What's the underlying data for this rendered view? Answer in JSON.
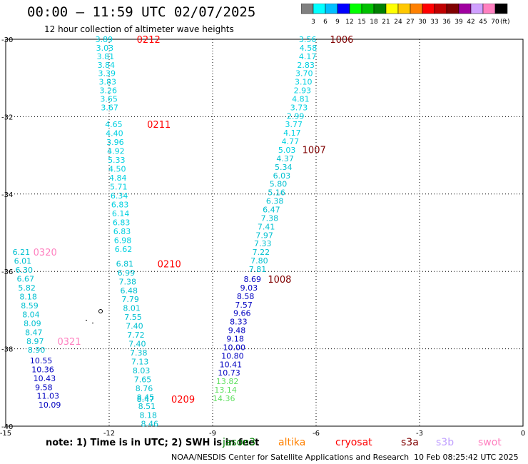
{
  "header": {
    "title": "00:00 — 11:59 UTC 02/07/2025",
    "subtitle": "12 hour collection of altimeter wave heights"
  },
  "scale": {
    "labels": [
      "3",
      "6",
      "9",
      "12",
      "15",
      "18",
      "21",
      "24",
      "27",
      "30",
      "33",
      "36",
      "39",
      "42",
      "45",
      "70"
    ],
    "unit": "(ft)",
    "colors": [
      "#808080",
      "#00ffff",
      "#00bfff",
      "#0000ff",
      "#00ff00",
      "#00c000",
      "#008000",
      "#ffff00",
      "#ffc800",
      "#ff8000",
      "#ff0000",
      "#c00000",
      "#800000",
      "#a000a0",
      "#d0a0ff",
      "#ff80c0",
      "#000000"
    ]
  },
  "map": {
    "x_ticks": [
      "-15",
      "-12",
      "-9",
      "-6",
      "-3",
      "0"
    ],
    "y_ticks": [
      "-30",
      "-32",
      "-34",
      "-36",
      "-38",
      "-40"
    ],
    "x_values": [
      -15,
      -12,
      -9,
      -6,
      -3,
      0
    ],
    "y_values": [
      -30,
      -32,
      -34,
      -36,
      -38,
      -40
    ]
  },
  "passes": [
    {
      "label": "0212",
      "label_color": "#ff0000",
      "label_lon": -11.2,
      "label_lat": -30.0,
      "color": "#00d0e0",
      "points": [
        {
          "v": "3.89",
          "lon": -12.4,
          "lat": -30.0
        },
        {
          "v": "3.03",
          "lon": -12.38,
          "lat": -30.22
        },
        {
          "v": "3.81",
          "lon": -12.36,
          "lat": -30.44
        },
        {
          "v": "3.84",
          "lon": -12.34,
          "lat": -30.66
        },
        {
          "v": "3.39",
          "lon": -12.32,
          "lat": -30.88
        },
        {
          "v": "3.83",
          "lon": -12.3,
          "lat": -31.1
        },
        {
          "v": "3.26",
          "lon": -12.28,
          "lat": -31.32
        },
        {
          "v": "3.65",
          "lon": -12.26,
          "lat": -31.54
        },
        {
          "v": "3.67",
          "lon": -12.24,
          "lat": -31.76
        }
      ]
    },
    {
      "label": "0211",
      "label_color": "#ff0000",
      "label_lon": -10.9,
      "label_lat": -32.2,
      "color": "#00d0e0",
      "points": [
        {
          "v": "4.65",
          "lon": -12.12,
          "lat": -32.2
        },
        {
          "v": "4.40",
          "lon": -12.1,
          "lat": -32.43
        },
        {
          "v": "3.96",
          "lon": -12.08,
          "lat": -32.66
        },
        {
          "v": "4.92",
          "lon": -12.06,
          "lat": -32.89
        },
        {
          "v": "5.33",
          "lon": -12.04,
          "lat": -33.12
        },
        {
          "v": "4.50",
          "lon": -12.02,
          "lat": -33.35
        },
        {
          "v": "4.84",
          "lon": -12.0,
          "lat": -33.58
        },
        {
          "v": "5.71",
          "lon": -11.98,
          "lat": -33.81
        },
        {
          "v": "6.34",
          "lon": -11.96,
          "lat": -34.04
        },
        {
          "v": "6.83",
          "lon": -11.94,
          "lat": -34.27
        },
        {
          "v": "6.14",
          "lon": -11.92,
          "lat": -34.5
        },
        {
          "v": "6.83",
          "lon": -11.9,
          "lat": -34.73
        },
        {
          "v": "6.83",
          "lon": -11.88,
          "lat": -34.96
        },
        {
          "v": "6.98",
          "lon": -11.86,
          "lat": -35.19
        },
        {
          "v": "6.62",
          "lon": -11.84,
          "lat": -35.42
        }
      ]
    },
    {
      "label": "0210",
      "label_color": "#ff0000",
      "label_lon": -10.6,
      "label_lat": -35.8,
      "color": "#00c0d0",
      "points": [
        {
          "v": "6.81",
          "lon": -11.8,
          "lat": -35.8
        },
        {
          "v": "6.99",
          "lon": -11.76,
          "lat": -36.03
        },
        {
          "v": "7.38",
          "lon": -11.72,
          "lat": -36.26
        },
        {
          "v": "6.48",
          "lon": -11.68,
          "lat": -36.49
        },
        {
          "v": "7.79",
          "lon": -11.64,
          "lat": -36.72
        },
        {
          "v": "8.01",
          "lon": -11.6,
          "lat": -36.95
        },
        {
          "v": "7.55",
          "lon": -11.56,
          "lat": -37.18
        },
        {
          "v": "7.40",
          "lon": -11.52,
          "lat": -37.41
        },
        {
          "v": "7.72",
          "lon": -11.48,
          "lat": -37.64
        },
        {
          "v": "7.40",
          "lon": -11.44,
          "lat": -37.87
        },
        {
          "v": "7.38",
          "lon": -11.4,
          "lat": -38.1
        },
        {
          "v": "7.13",
          "lon": -11.36,
          "lat": -38.33
        },
        {
          "v": "8.03",
          "lon": -11.32,
          "lat": -38.56
        },
        {
          "v": "7.65",
          "lon": -11.28,
          "lat": -38.79
        },
        {
          "v": "8.76",
          "lon": -11.24,
          "lat": -39.02
        },
        {
          "v": "8.45",
          "lon": -11.2,
          "lat": -39.25
        },
        {
          "v": "8.51",
          "lon": -11.16,
          "lat": -39.48
        },
        {
          "v": "8.18",
          "lon": -11.12,
          "lat": -39.71
        },
        {
          "v": "8.46",
          "lon": -11.08,
          "lat": -39.94
        }
      ]
    },
    {
      "label": "0209",
      "label_color": "#ff0000",
      "label_lon": -10.2,
      "label_lat": -39.3,
      "color": "#00c0d0",
      "points": [
        {
          "v": "8.47",
          "lon": -11.2,
          "lat": -39.3
        }
      ]
    },
    {
      "label": "0320",
      "label_color": "#ff80c0",
      "label_lon": -14.2,
      "label_lat": -35.5,
      "color": "#00c0d0",
      "points": [
        {
          "v": "6.21",
          "lon": -14.8,
          "lat": -35.5
        },
        {
          "v": "6.01",
          "lon": -14.76,
          "lat": -35.73
        },
        {
          "v": "6.30",
          "lon": -14.72,
          "lat": -35.96
        },
        {
          "v": "6.67",
          "lon": -14.68,
          "lat": -36.19
        },
        {
          "v": "5.82",
          "lon": -14.64,
          "lat": -36.42
        },
        {
          "v": "8.18",
          "lon": -14.6,
          "lat": -36.65
        },
        {
          "v": "8.59",
          "lon": -14.56,
          "lat": -36.88
        },
        {
          "v": "8.04",
          "lon": -14.52,
          "lat": -37.11
        },
        {
          "v": "8.09",
          "lon": -14.48,
          "lat": -37.34
        },
        {
          "v": "8.47",
          "lon": -14.44,
          "lat": -37.57
        },
        {
          "v": "8.97",
          "lon": -14.4,
          "lat": -37.8
        },
        {
          "v": "8.90",
          "lon": -14.36,
          "lat": -38.03
        }
      ]
    },
    {
      "label": "0321",
      "label_color": "#ff80c0",
      "label_lon": -13.5,
      "label_lat": -37.8,
      "color": "#0000c0",
      "points": [
        {
          "v": "10.55",
          "lon": -14.3,
          "lat": -38.3
        },
        {
          "v": "10.36",
          "lon": -14.25,
          "lat": -38.53
        },
        {
          "v": "10.43",
          "lon": -14.2,
          "lat": -38.76
        },
        {
          "v": "9.58",
          "lon": -14.15,
          "lat": -38.99
        },
        {
          "v": "11.03",
          "lon": -14.1,
          "lat": -39.22
        },
        {
          "v": "10.09",
          "lon": -14.05,
          "lat": -39.45
        }
      ]
    },
    {
      "label": "1006",
      "label_color": "#800000",
      "label_lon": -5.6,
      "label_lat": -30.0,
      "color": "#00d0e0",
      "points": [
        {
          "v": "3.56",
          "lon": -6.5,
          "lat": -30.0
        },
        {
          "v": "4.58",
          "lon": -6.48,
          "lat": -30.22
        },
        {
          "v": "4.17",
          "lon": -6.5,
          "lat": -30.44
        },
        {
          "v": "2.83",
          "lon": -6.55,
          "lat": -30.66
        },
        {
          "v": "3.70",
          "lon": -6.6,
          "lat": -30.88
        },
        {
          "v": "3.10",
          "lon": -6.62,
          "lat": -31.1
        },
        {
          "v": "2.93",
          "lon": -6.65,
          "lat": -31.32
        },
        {
          "v": "4.81",
          "lon": -6.7,
          "lat": -31.54
        },
        {
          "v": "3.73",
          "lon": -6.75,
          "lat": -31.76
        },
        {
          "v": "2.99",
          "lon": -6.85,
          "lat": -31.98
        },
        {
          "v": "3.77",
          "lon": -6.9,
          "lat": -32.2
        },
        {
          "v": "4.17",
          "lon": -6.95,
          "lat": -32.42
        },
        {
          "v": "4.77",
          "lon": -7.0,
          "lat": -32.64
        },
        {
          "v": "5.03",
          "lon": -7.1,
          "lat": -32.86
        }
      ]
    },
    {
      "label": "1007",
      "label_color": "#800000",
      "label_lon": -6.4,
      "label_lat": -32.85,
      "color": "#00c0d0",
      "points": [
        {
          "v": "4.37",
          "lon": -7.15,
          "lat": -33.08
        },
        {
          "v": "5.34",
          "lon": -7.2,
          "lat": -33.3
        },
        {
          "v": "6.03",
          "lon": -7.25,
          "lat": -33.52
        },
        {
          "v": "5.80",
          "lon": -7.35,
          "lat": -33.74
        },
        {
          "v": "5.16",
          "lon": -7.4,
          "lat": -33.96
        },
        {
          "v": "6.38",
          "lon": -7.45,
          "lat": -34.18
        },
        {
          "v": "6.47",
          "lon": -7.55,
          "lat": -34.4
        },
        {
          "v": "7.38",
          "lon": -7.6,
          "lat": -34.62
        },
        {
          "v": "7.41",
          "lon": -7.7,
          "lat": -34.84
        },
        {
          "v": "7.97",
          "lon": -7.75,
          "lat": -35.06
        },
        {
          "v": "7.33",
          "lon": -7.8,
          "lat": -35.28
        },
        {
          "v": "7.22",
          "lon": -7.85,
          "lat": -35.5
        },
        {
          "v": "7.80",
          "lon": -7.9,
          "lat": -35.72
        },
        {
          "v": "7.81",
          "lon": -7.95,
          "lat": -35.94
        }
      ]
    },
    {
      "label": "1008",
      "label_color": "#800000",
      "label_lon": -7.4,
      "label_lat": -36.2,
      "color": "#0000c0",
      "points": [
        {
          "v": "8.69",
          "lon": -8.1,
          "lat": -36.2
        },
        {
          "v": "9.03",
          "lon": -8.2,
          "lat": -36.42
        },
        {
          "v": "8.58",
          "lon": -8.3,
          "lat": -36.64
        },
        {
          "v": "7.57",
          "lon": -8.35,
          "lat": -36.86
        },
        {
          "v": "9.66",
          "lon": -8.4,
          "lat": -37.08
        },
        {
          "v": "8.33",
          "lon": -8.5,
          "lat": -37.3
        },
        {
          "v": "9.48",
          "lon": -8.55,
          "lat": -37.52
        },
        {
          "v": "9.18",
          "lon": -8.6,
          "lat": -37.74
        },
        {
          "v": "10.00",
          "lon": -8.7,
          "lat": -37.96
        },
        {
          "v": "10.80",
          "lon": -8.75,
          "lat": -38.18
        },
        {
          "v": "10.41",
          "lon": -8.8,
          "lat": -38.4
        },
        {
          "v": "10.73",
          "lon": -8.85,
          "lat": -38.62
        }
      ]
    },
    {
      "label": "",
      "label_color": "#000000",
      "label_lon": 0,
      "label_lat": 0,
      "color": "#60e060",
      "points": [
        {
          "v": "13.82",
          "lon": -8.9,
          "lat": -38.84
        },
        {
          "v": "13.14",
          "lon": -8.95,
          "lat": -39.06
        },
        {
          "v": "14.36",
          "lon": -9.0,
          "lat": -39.28
        }
      ]
    }
  ],
  "footer": {
    "note": "note:  1) Time is in UTC; 2) SWH is in feet",
    "satellites": [
      {
        "name": "jason3",
        "color": "#008000"
      },
      {
        "name": "altika",
        "color": "#ff8000"
      },
      {
        "name": "cryosat",
        "color": "#ff0000"
      },
      {
        "name": "s3a",
        "color": "#800000"
      },
      {
        "name": "s3b",
        "color": "#c0a0ff"
      },
      {
        "name": "swot",
        "color": "#ff80c0"
      }
    ],
    "credit": "NOAA/NESDIS Center for Satellite Applications and Research",
    "date": "10 Feb 08:25:42 UTC 2025"
  }
}
